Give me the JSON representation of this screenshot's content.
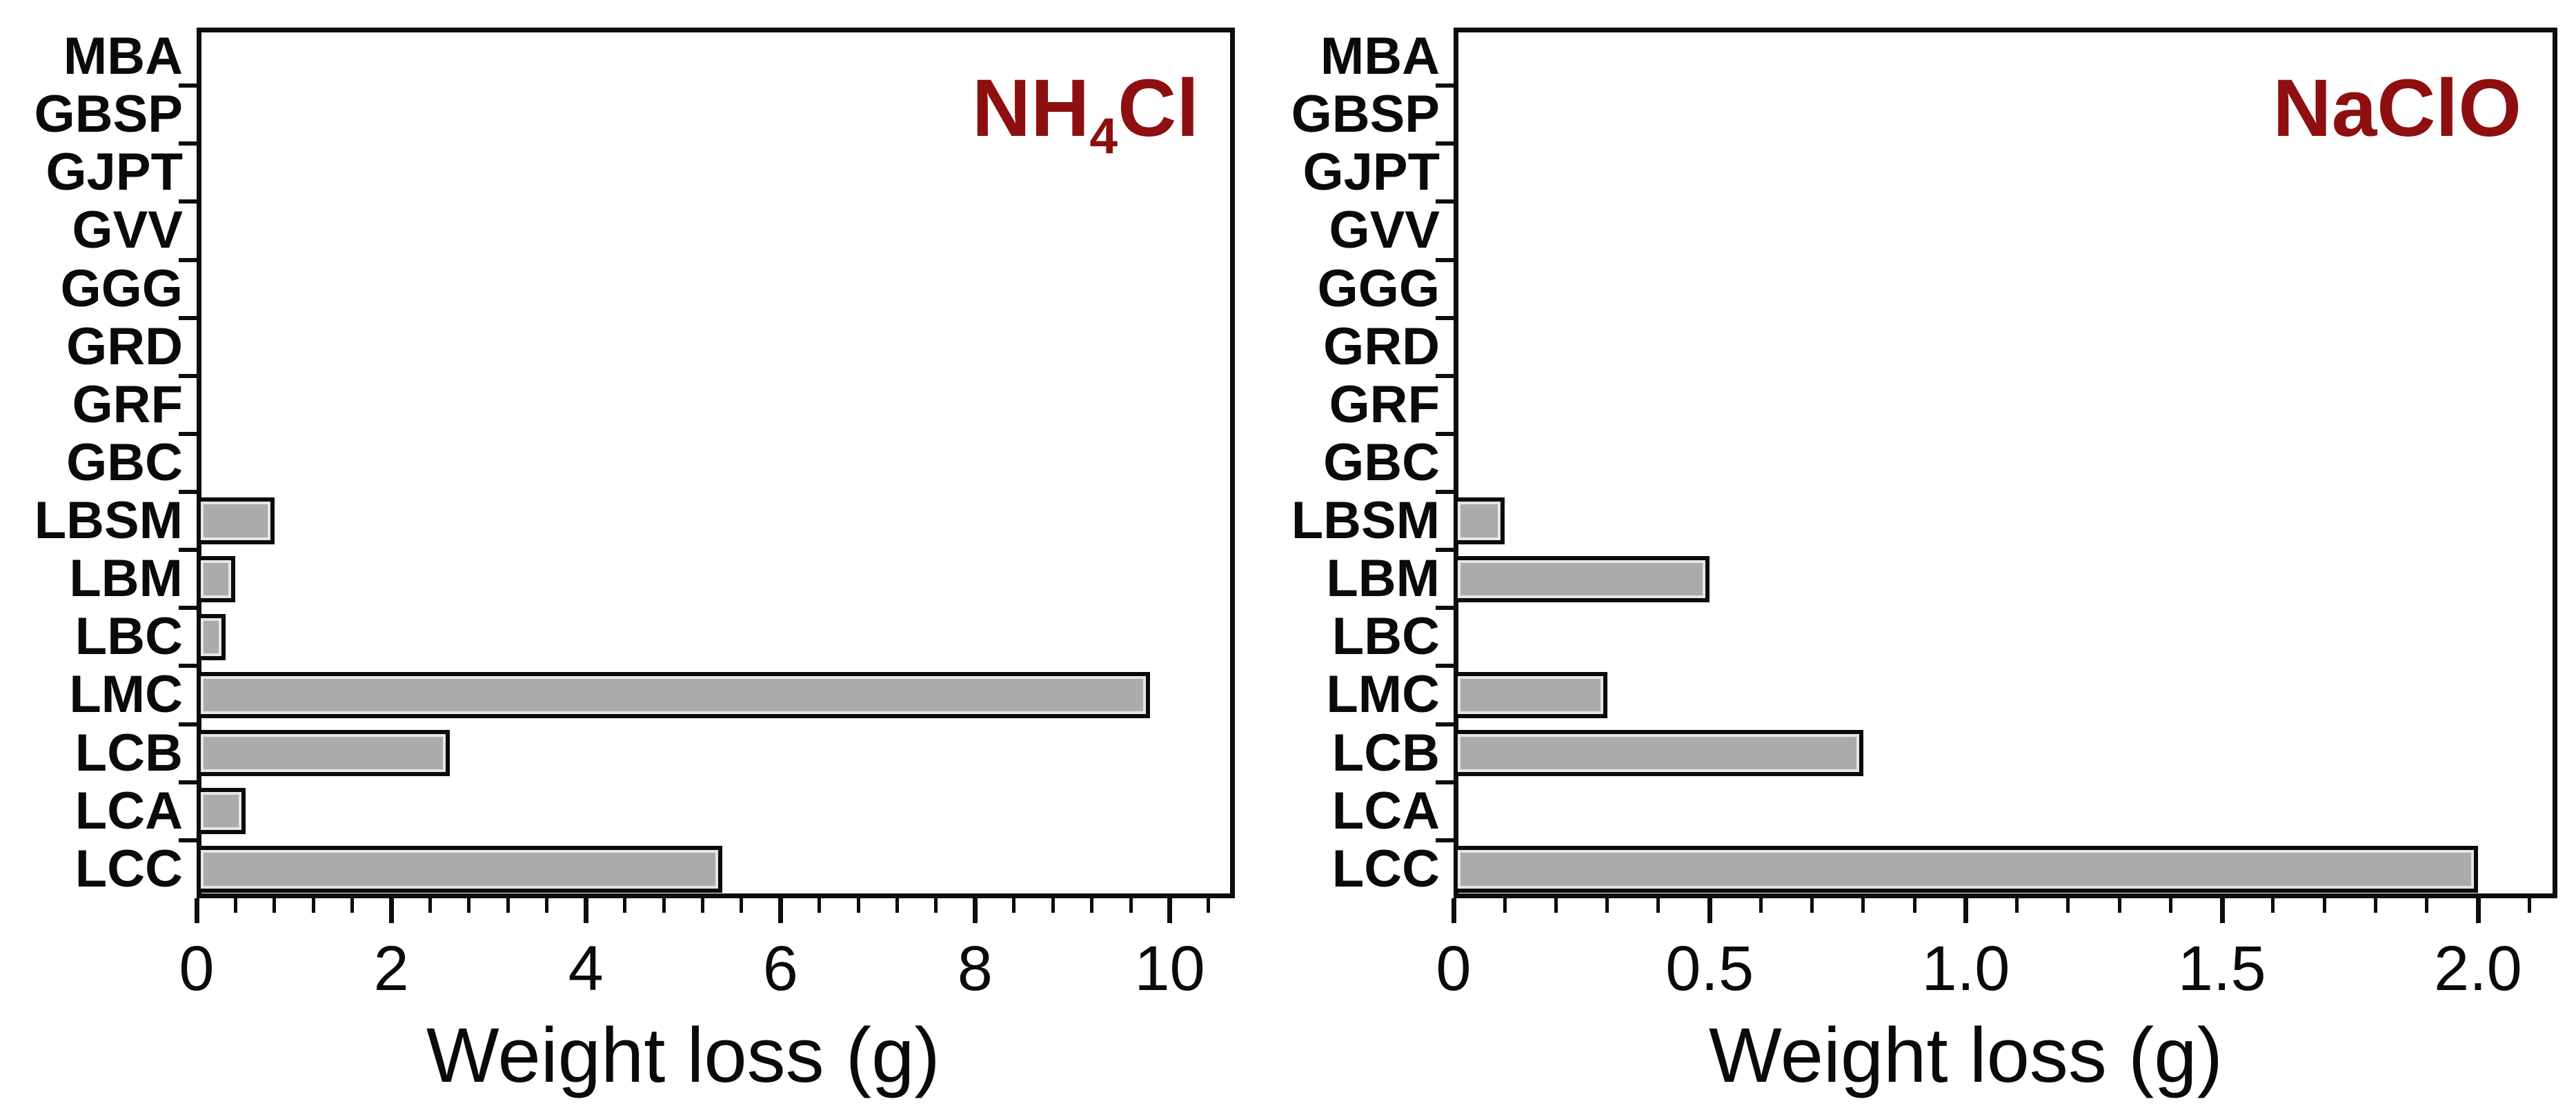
{
  "figure": {
    "background": "#ffffff",
    "bar_fill": "#ababab",
    "bar_border": "#0a0a0a",
    "axis_color": "#0d0d0d",
    "title_color": "#8e0f0f"
  },
  "chart_data": [
    {
      "type": "bar",
      "orientation": "horizontal",
      "name": "nh4cl-chart",
      "title": "NH4Cl",
      "title_parts": [
        {
          "text": "NH",
          "subscript": false
        },
        {
          "text": "4",
          "subscript": true
        },
        {
          "text": "Cl",
          "subscript": false
        }
      ],
      "xlabel": "Weight loss (g)",
      "categories_top_to_bottom": [
        "MBA",
        "GBSP",
        "GJPT",
        "GVV",
        "GGG",
        "GRD",
        "GRF",
        "GBC",
        "LBSM",
        "LBM",
        "LBC",
        "LMC",
        "LCB",
        "LCA",
        "LCC"
      ],
      "values": [
        0,
        0,
        0,
        0,
        0,
        0,
        0,
        0,
        0.8,
        0.4,
        0.3,
        9.8,
        2.6,
        0.5,
        5.4
      ],
      "xlim": [
        0,
        10.67
      ],
      "x_major_ticks": [
        {
          "value": 0,
          "label": "0"
        },
        {
          "value": 2,
          "label": "2"
        },
        {
          "value": 4,
          "label": "4"
        },
        {
          "value": 6,
          "label": "6"
        },
        {
          "value": 8,
          "label": "8"
        },
        {
          "value": 10,
          "label": "10"
        }
      ],
      "x_minor_step": 0.4,
      "grid": false,
      "legend": "none"
    },
    {
      "type": "bar",
      "orientation": "horizontal",
      "name": "naclo-chart",
      "title": "NaClO",
      "title_parts": [
        {
          "text": "NaClO",
          "subscript": false
        }
      ],
      "xlabel": "Weight loss (g)",
      "categories_top_to_bottom": [
        "MBA",
        "GBSP",
        "GJPT",
        "GVV",
        "GGG",
        "GRD",
        "GRF",
        "GBC",
        "LBSM",
        "LBM",
        "LBC",
        "LMC",
        "LCB",
        "LCA",
        "LCC"
      ],
      "values": [
        0,
        0,
        0,
        0,
        0,
        0,
        0,
        0,
        0.1,
        0.5,
        0,
        0.3,
        0.8,
        0,
        2.0
      ],
      "xlim": [
        0,
        2.155
      ],
      "x_major_ticks": [
        {
          "value": 0,
          "label": "0"
        },
        {
          "value": 0.5,
          "label": "0.5"
        },
        {
          "value": 1.0,
          "label": "1.0"
        },
        {
          "value": 1.5,
          "label": "1.5"
        },
        {
          "value": 2.0,
          "label": "2.0"
        }
      ],
      "x_minor_step": 0.1,
      "grid": false,
      "legend": "none"
    }
  ]
}
